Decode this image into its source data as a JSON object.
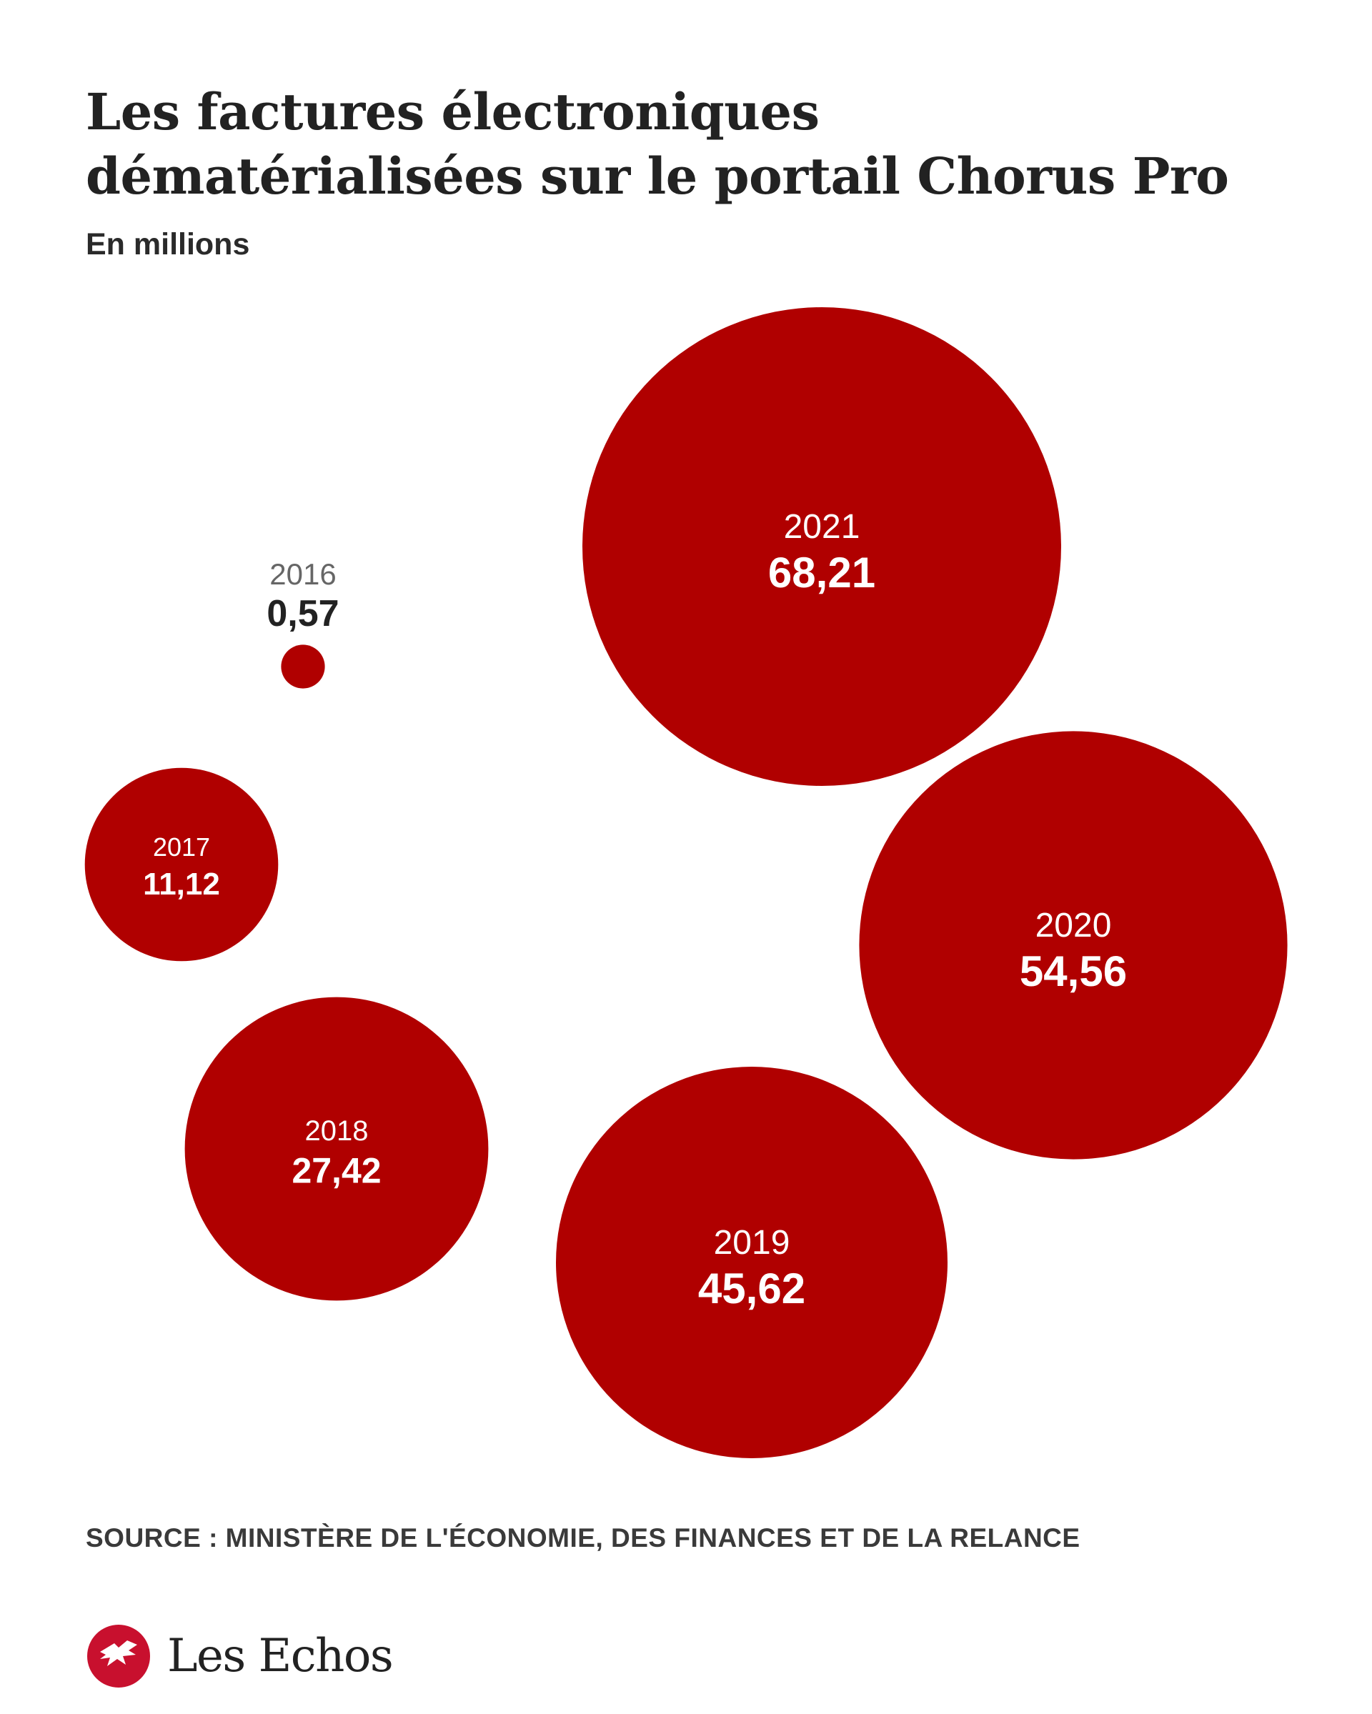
{
  "title_lines": [
    "Les factures électroniques",
    "dématérialisées sur le portail Chorus Pro"
  ],
  "subtitle": "En millions",
  "source": "SOURCE : MINISTÈRE DE L'ÉCONOMIE, DES FINANCES ET DE LA RELANCE",
  "brand": {
    "name": "Les Echos",
    "logo_icon": "les-echos-logo-icon"
  },
  "colors": {
    "bubble": "#b00000",
    "bubble_text": "#ffffff",
    "outside_year": "#666666",
    "outside_value": "#222222"
  },
  "chart_data": {
    "type": "bubble",
    "title": "Les factures électroniques dématérialisées sur le portail Chorus Pro",
    "unit": "En millions",
    "area_proportional": true,
    "points": [
      {
        "year": "2016",
        "value": 0.57,
        "label": "0,57",
        "label_position": "outside-top"
      },
      {
        "year": "2017",
        "value": 11.12,
        "label": "11,12",
        "label_position": "inside"
      },
      {
        "year": "2018",
        "value": 27.42,
        "label": "27,42",
        "label_position": "inside"
      },
      {
        "year": "2019",
        "value": 45.62,
        "label": "45,62",
        "label_position": "inside"
      },
      {
        "year": "2020",
        "value": 54.56,
        "label": "54,56",
        "label_position": "inside"
      },
      {
        "year": "2021",
        "value": 68.21,
        "label": "68,21",
        "label_position": "inside"
      }
    ]
  }
}
